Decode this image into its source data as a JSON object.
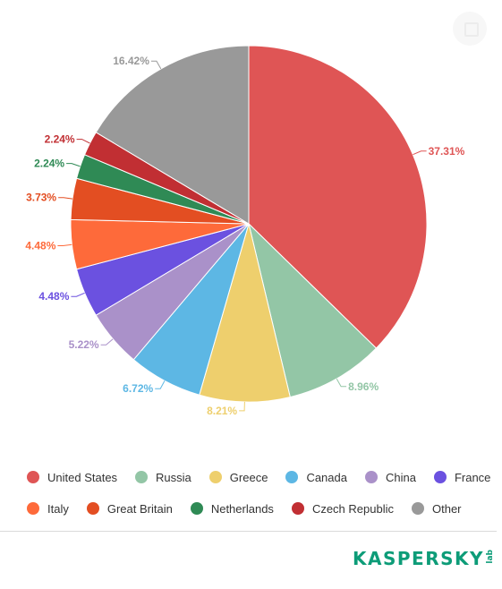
{
  "chart_data": {
    "type": "pie",
    "title": "",
    "categories": [
      "United States",
      "Russia",
      "Greece",
      "Canada",
      "China",
      "France",
      "Italy",
      "Great Britain",
      "Netherlands",
      "Czech Republic",
      "Other"
    ],
    "values": [
      37.31,
      8.96,
      8.21,
      6.72,
      5.22,
      4.48,
      4.48,
      3.73,
      2.24,
      2.24,
      16.42
    ],
    "labels": [
      "37.31%",
      "8.96%",
      "8.21%",
      "6.72%",
      "5.22%",
      "4.48%",
      "4.48%",
      "3.73%",
      "2.24%",
      "2.24%",
      "16.42%"
    ],
    "colors": [
      "#df5555",
      "#93c6a6",
      "#eecf6d",
      "#5db7e4",
      "#aa91c9",
      "#6b51e0",
      "#fe6a3a",
      "#e34e22",
      "#2f8a55",
      "#c12f33",
      "#999999"
    ],
    "legend_position": "bottom"
  },
  "legend": {
    "rows": [
      [
        {
          "label": "United States",
          "color": "#df5555"
        },
        {
          "label": "Russia",
          "color": "#93c6a6"
        },
        {
          "label": "Greece",
          "color": "#eecf6d"
        },
        {
          "label": "Canada",
          "color": "#5db7e4"
        },
        {
          "label": "China",
          "color": "#aa91c9"
        },
        {
          "label": "France",
          "color": "#6b51e0"
        }
      ],
      [
        {
          "label": "Italy",
          "color": "#fe6a3a"
        },
        {
          "label": "Great Britain",
          "color": "#e34e22"
        },
        {
          "label": "Netherlands",
          "color": "#2f8a55"
        },
        {
          "label": "Czech Republic",
          "color": "#c12f33"
        },
        {
          "label": "Other",
          "color": "#999999"
        }
      ]
    ]
  },
  "logo": {
    "text": "KASPERSKY",
    "sub": "lab",
    "color": "#0d9c78"
  },
  "icons": {
    "corner": "fullscreen-icon"
  }
}
